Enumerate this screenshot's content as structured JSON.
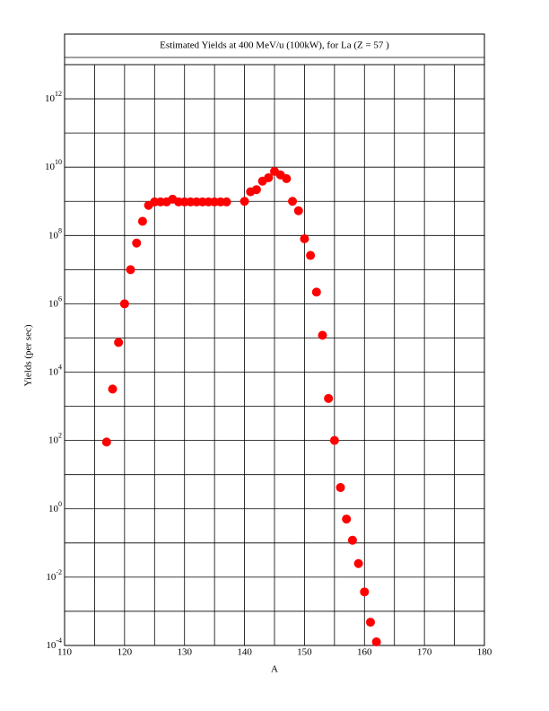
{
  "chart_data": {
    "type": "scatter",
    "title": "Estimated Yields at 400 MeV/u (100kW), for La (Z = 57 )",
    "x_label": "A",
    "y_label": "Yields (per sec)",
    "log_y": true,
    "grid": true,
    "color": "#ff0000",
    "xlim": [
      110,
      180
    ],
    "ylim": [
      0.0001,
      10000000000000
    ],
    "xticks": [
      110,
      120,
      130,
      140,
      150,
      160,
      170,
      180
    ],
    "xminor": [
      115,
      125,
      135,
      145,
      155,
      165,
      175
    ],
    "yticks": [
      {
        "value": 0.0001,
        "label": "10^-4"
      },
      {
        "value": 0.01,
        "label": "10^-2"
      },
      {
        "value": 1,
        "label": "10^0"
      },
      {
        "value": 100,
        "label": "10^2"
      },
      {
        "value": 10000,
        "label": "10^4"
      },
      {
        "value": 1000000,
        "label": "10^6"
      },
      {
        "value": 100000000,
        "label": "10^8"
      },
      {
        "value": 10000000000,
        "label": "10^10"
      },
      {
        "value": 1000000000000,
        "label": "10^12"
      }
    ],
    "yminor": [
      0.001,
      0.1,
      10,
      1000,
      100000,
      10000000,
      1000000000,
      100000000000,
      10000000000000
    ],
    "x": [
      117,
      118,
      119,
      120,
      121,
      122,
      123,
      124,
      125,
      126,
      127,
      128,
      129,
      130,
      131,
      132,
      133,
      134,
      135,
      136,
      137,
      140,
      141,
      142,
      143,
      144,
      145,
      146,
      147,
      148,
      149,
      150,
      151,
      152,
      153,
      154,
      155,
      156,
      157,
      158,
      159,
      160,
      161,
      162
    ],
    "y": [
      90,
      3200,
      74000,
      1000000,
      10000000,
      60000000,
      260000000,
      760000000,
      960000000,
      960000000,
      960000000,
      1150000000,
      960000000,
      960000000,
      960000000,
      960000000,
      960000000,
      960000000,
      960000000,
      960000000,
      960000000,
      1000000000,
      1900000000,
      2200000000,
      3900000000,
      4900000000,
      7500000000,
      5900000000,
      4600000000,
      1000000000,
      530000000,
      80000000,
      26000000,
      2200000,
      120000,
      1700,
      100,
      4.2,
      0.5,
      0.12,
      0.025,
      0.0037,
      0.00048,
      0.000127
    ]
  }
}
